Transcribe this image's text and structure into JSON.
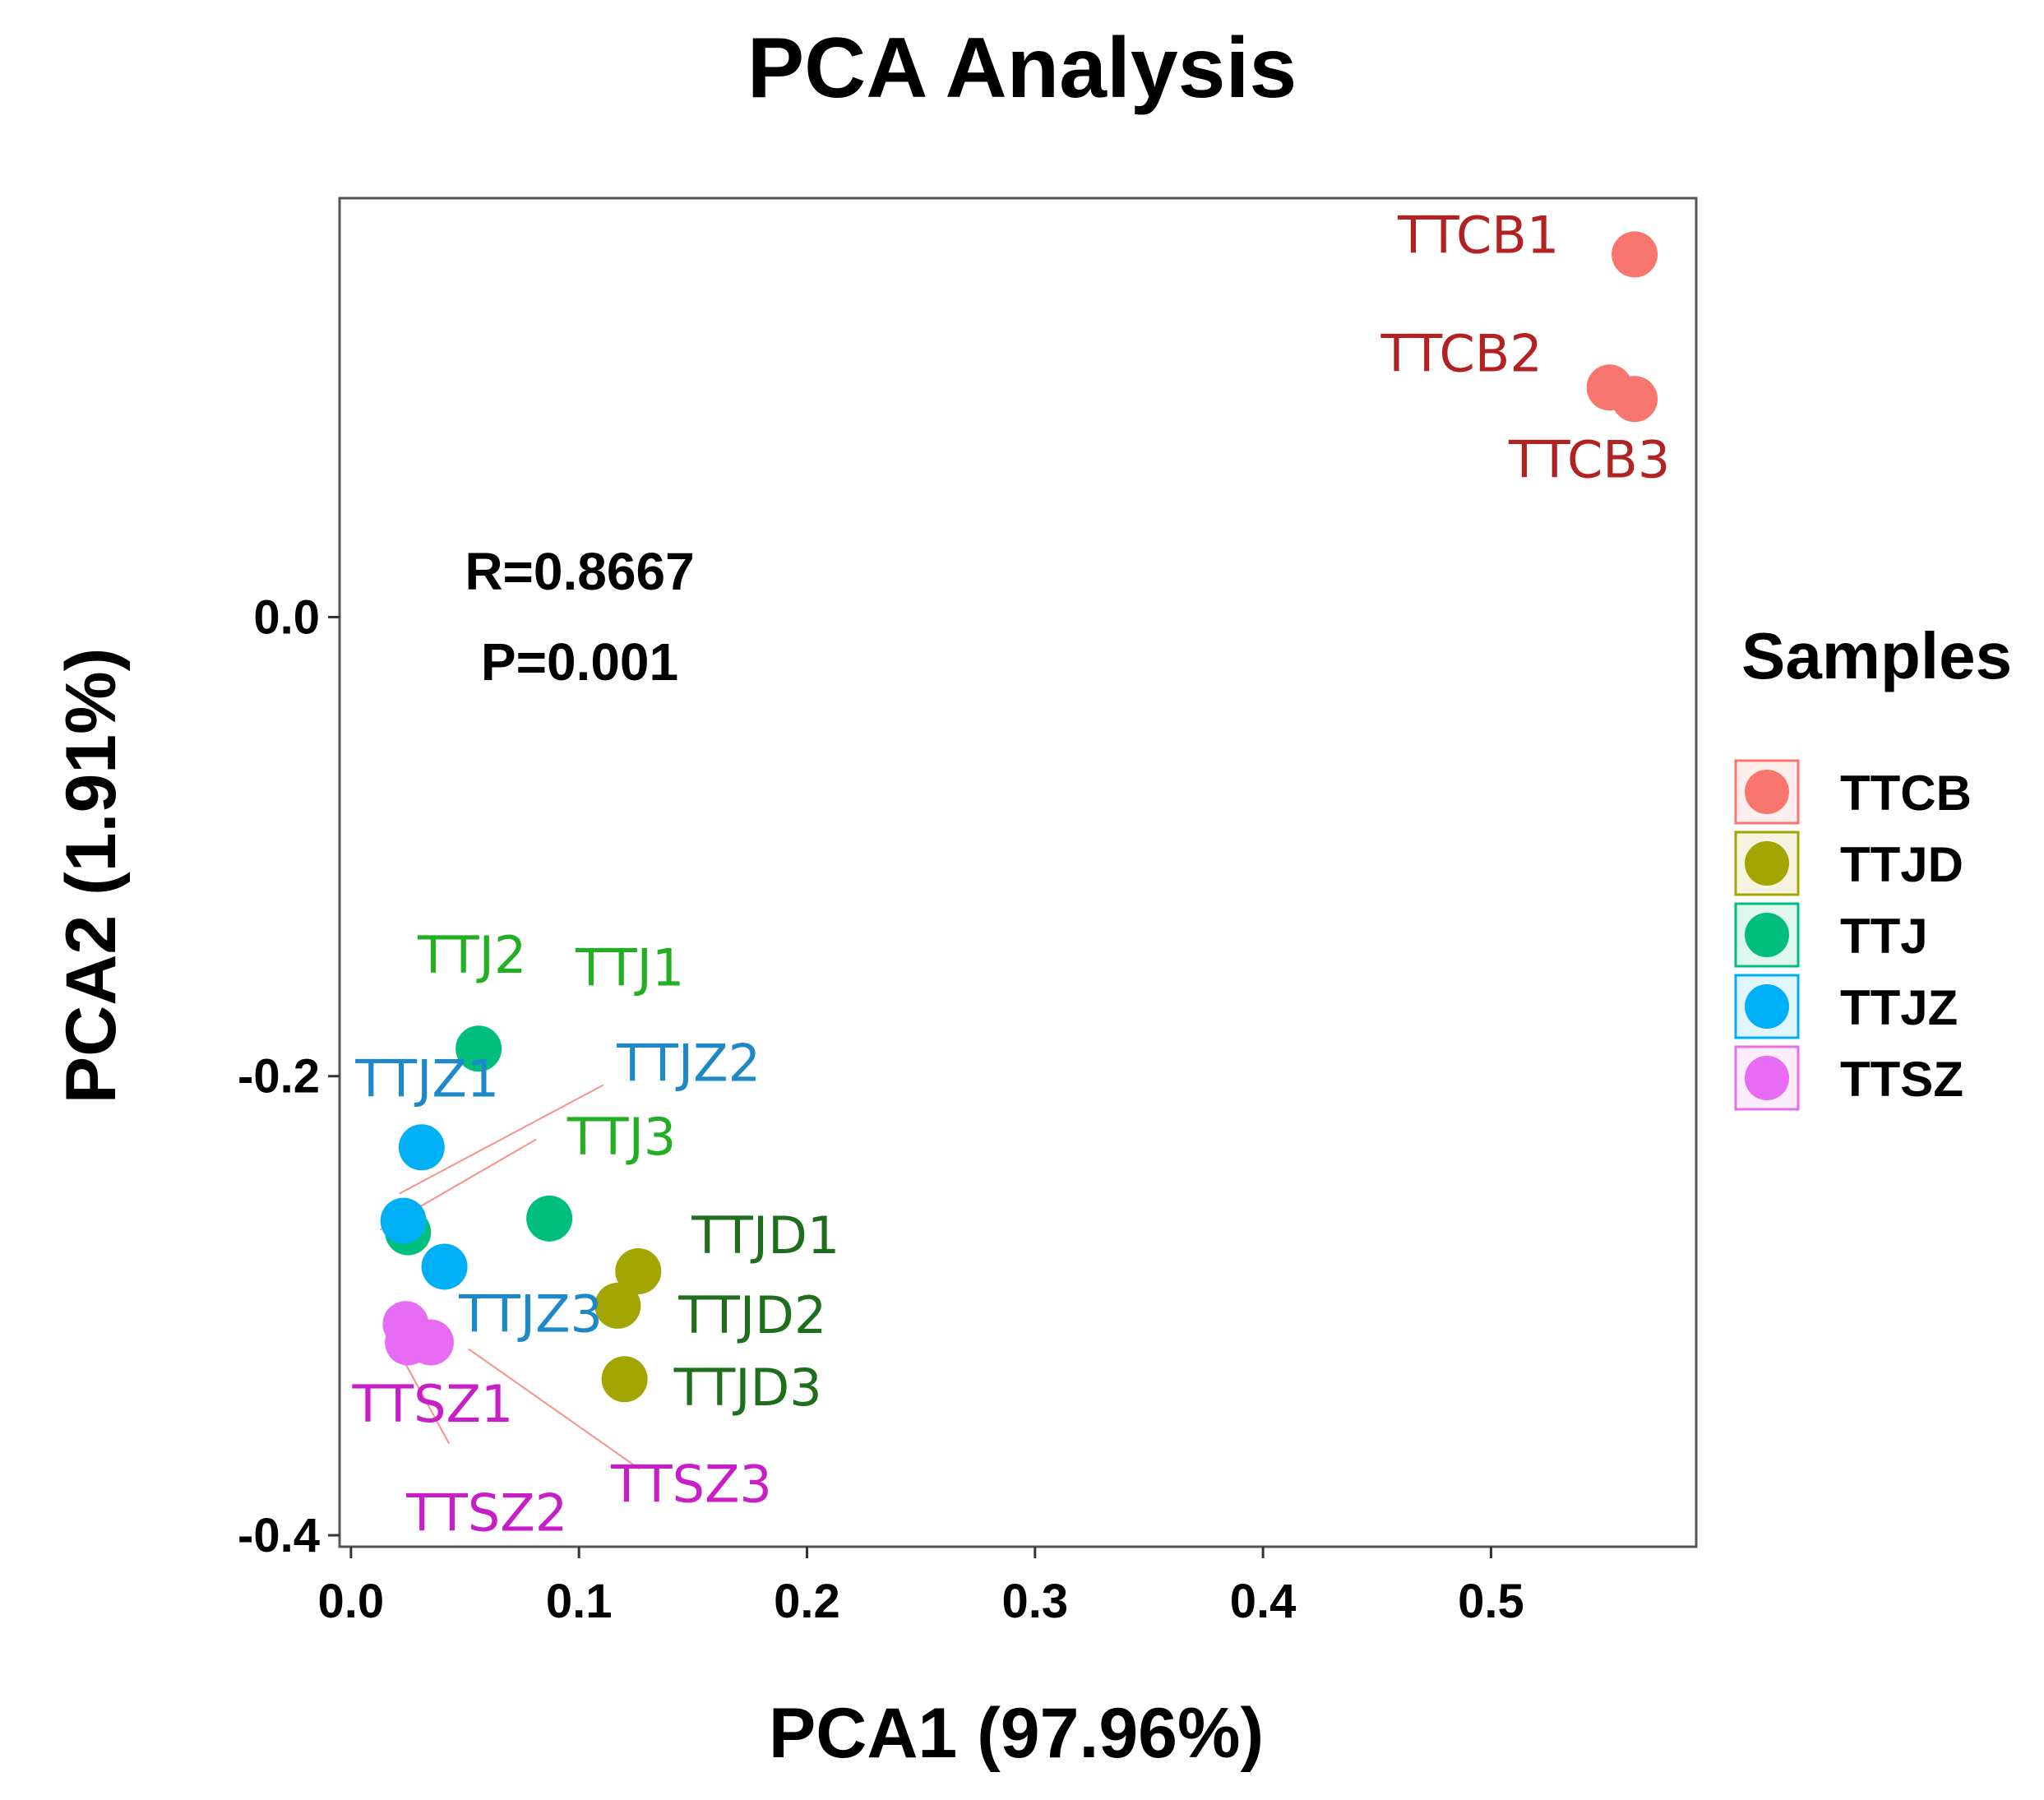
{
  "chart_data": {
    "type": "scatter",
    "title": "PCA Analysis",
    "xlabel": "PCA1 (97.96%)",
    "ylabel": "PCA2 (1.91%)",
    "xlim": [
      -0.005,
      0.59
    ],
    "ylim": [
      -0.405,
      0.1825
    ],
    "xticks": [
      0.0,
      0.1,
      0.2,
      0.3,
      0.4,
      0.5
    ],
    "xtick_labels": [
      "0.0",
      "0.1",
      "0.2",
      "0.3",
      "0.4",
      "0.5"
    ],
    "yticks": [
      0.0,
      -0.2,
      -0.4
    ],
    "ytick_labels": [
      "0.0",
      "-0.2",
      "-0.4"
    ],
    "annotations": [
      "R=0.8667",
      "P=0.001"
    ],
    "legend_title": "Samples",
    "groups": [
      {
        "name": "TTCB",
        "color": "#F8766D",
        "label_color": "#B22222"
      },
      {
        "name": "TTJD",
        "color": "#A3A500",
        "label_color": "#1E6E1E"
      },
      {
        "name": "TTJ",
        "color": "#00BF7D",
        "label_color": "#22B022"
      },
      {
        "name": "TTJZ",
        "color": "#00B0F6",
        "label_color": "#1E88C8"
      },
      {
        "name": "TTSZ",
        "color": "#E76BF3",
        "label_color": "#C81EC8"
      }
    ],
    "points": [
      {
        "label": "TTCB1",
        "group": "TTCB",
        "x": 0.563,
        "y": 0.158
      },
      {
        "label": "TTCB2",
        "group": "TTCB",
        "x": 0.552,
        "y": 0.1
      },
      {
        "label": "TTCB3",
        "group": "TTCB",
        "x": 0.563,
        "y": 0.095
      },
      {
        "label": "TTJ1",
        "group": "TTJ",
        "x": 0.025,
        "y": -0.268
      },
      {
        "label": "TTJ2",
        "group": "TTJ",
        "x": 0.056,
        "y": -0.188
      },
      {
        "label": "TTJ3",
        "group": "TTJ",
        "x": 0.087,
        "y": -0.262
      },
      {
        "label": "TTJZ1",
        "group": "TTJZ",
        "x": 0.031,
        "y": -0.231
      },
      {
        "label": "TTJZ2",
        "group": "TTJZ",
        "x": 0.023,
        "y": -0.263
      },
      {
        "label": "TTJZ3",
        "group": "TTJZ",
        "x": 0.041,
        "y": -0.283
      },
      {
        "label": "TTJD1",
        "group": "TTJD",
        "x": 0.126,
        "y": -0.285
      },
      {
        "label": "TTJD2",
        "group": "TTJD",
        "x": 0.117,
        "y": -0.3
      },
      {
        "label": "TTJD3",
        "group": "TTJD",
        "x": 0.12,
        "y": -0.332
      },
      {
        "label": "TTSZ1",
        "group": "TTSZ",
        "x": 0.024,
        "y": -0.308
      },
      {
        "label": "TTSZ2",
        "group": "TTSZ",
        "x": 0.025,
        "y": -0.316
      },
      {
        "label": "TTSZ3",
        "group": "TTSZ",
        "x": 0.035,
        "y": -0.316
      }
    ]
  }
}
